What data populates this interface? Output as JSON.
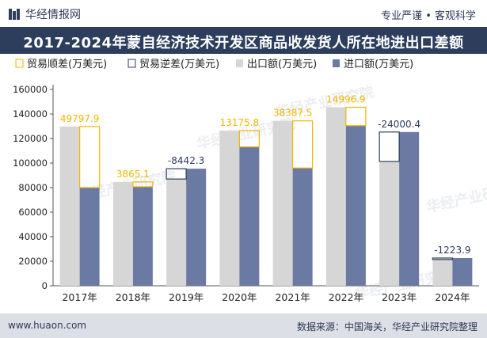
{
  "header": {
    "site_name": "华经情报网",
    "tagline": "专业严谨 • 客观科学",
    "title": "2017-2024年蒙自经济技术开发区商品收发货人所在地进出口差额"
  },
  "watermark": "华经产业研究院",
  "legend": [
    {
      "label": "贸易顺差(万美元)",
      "key": "surplus"
    },
    {
      "label": "贸易逆差(万美元)",
      "key": "deficit"
    },
    {
      "label": "出口额(万美元)",
      "key": "export"
    },
    {
      "label": "进口额(万美元)",
      "key": "import"
    }
  ],
  "colors": {
    "export": "#d6d6d6",
    "import": "#6b7aa3",
    "surplus_border": "#f2b600",
    "deficit_border": "#2d3d5c",
    "surplus_label": "#f2b600",
    "deficit_label": "#2d3d5c",
    "title_bg": "#2d3d5c"
  },
  "chart_data": {
    "type": "bar",
    "categories": [
      "2017年",
      "2018年",
      "2019年",
      "2020年",
      "2021年",
      "2022年",
      "2023年",
      "2024年"
    ],
    "series": [
      {
        "name": "出口额(万美元)",
        "values": [
          129800,
          84600,
          87000,
          126400,
          134400,
          145500,
          101300,
          21400
        ]
      },
      {
        "name": "进口额(万美元)",
        "values": [
          80000,
          80700,
          95400,
          113200,
          96000,
          130500,
          125300,
          22600
        ]
      }
    ],
    "balance": {
      "values": [
        49797.9,
        3865.1,
        -8442.3,
        13175.8,
        38387.5,
        14996.9,
        -24000.4,
        -1223.9
      ],
      "labels": [
        "49797.9",
        "3865.1",
        "-8442.3",
        "13175.8",
        "38387.5",
        "14996.9",
        "-24000.4",
        "-1223.9"
      ]
    },
    "ylim": [
      0,
      160000
    ],
    "yticks": [
      0,
      20000,
      40000,
      60000,
      80000,
      100000,
      120000,
      140000,
      160000
    ],
    "grid": false,
    "legend_position": "top"
  },
  "footer": {
    "website": "www.huaon.com",
    "source": "数据来源：中国海关，华经产业研究院整理"
  }
}
